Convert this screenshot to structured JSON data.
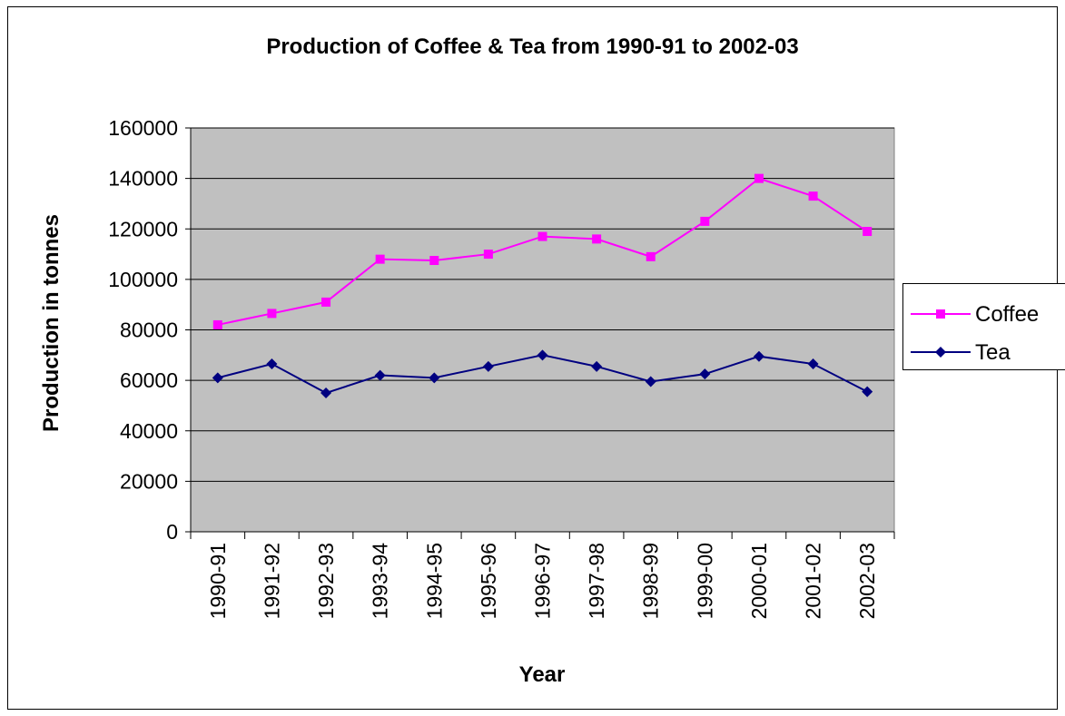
{
  "chart_data": {
    "type": "line",
    "title": "Production of Coffee & Tea from 1990-91 to 2002-03",
    "xlabel": "Year",
    "ylabel": "Production in tonnes",
    "categories": [
      "1990-91",
      "1991-92",
      "1992-93",
      "1993-94",
      "1994-95",
      "1995-96",
      "1996-97",
      "1997-98",
      "1998-99",
      "1999-00",
      "2000-01",
      "2001-02",
      "2002-03"
    ],
    "ylim": [
      0,
      160000
    ],
    "yticks": [
      0,
      20000,
      40000,
      60000,
      80000,
      100000,
      120000,
      140000,
      160000
    ],
    "ytick_labels": [
      "0",
      "20000",
      "40000",
      "60000",
      "80000",
      "100000",
      "120000",
      "140000",
      "160000"
    ],
    "grid": true,
    "plot_background": "#c0c0c0",
    "legend_position": "right",
    "series": [
      {
        "name": "Coffee",
        "color": "#ff00ff",
        "marker": "square",
        "values": [
          82000,
          86500,
          91000,
          108000,
          107500,
          110000,
          117000,
          116000,
          109000,
          123000,
          140000,
          133000,
          119000
        ]
      },
      {
        "name": "Tea",
        "color": "#000080",
        "marker": "diamond",
        "values": [
          61000,
          66500,
          55000,
          62000,
          61000,
          65500,
          70000,
          65500,
          59500,
          62500,
          69500,
          66500,
          55500
        ]
      }
    ]
  }
}
